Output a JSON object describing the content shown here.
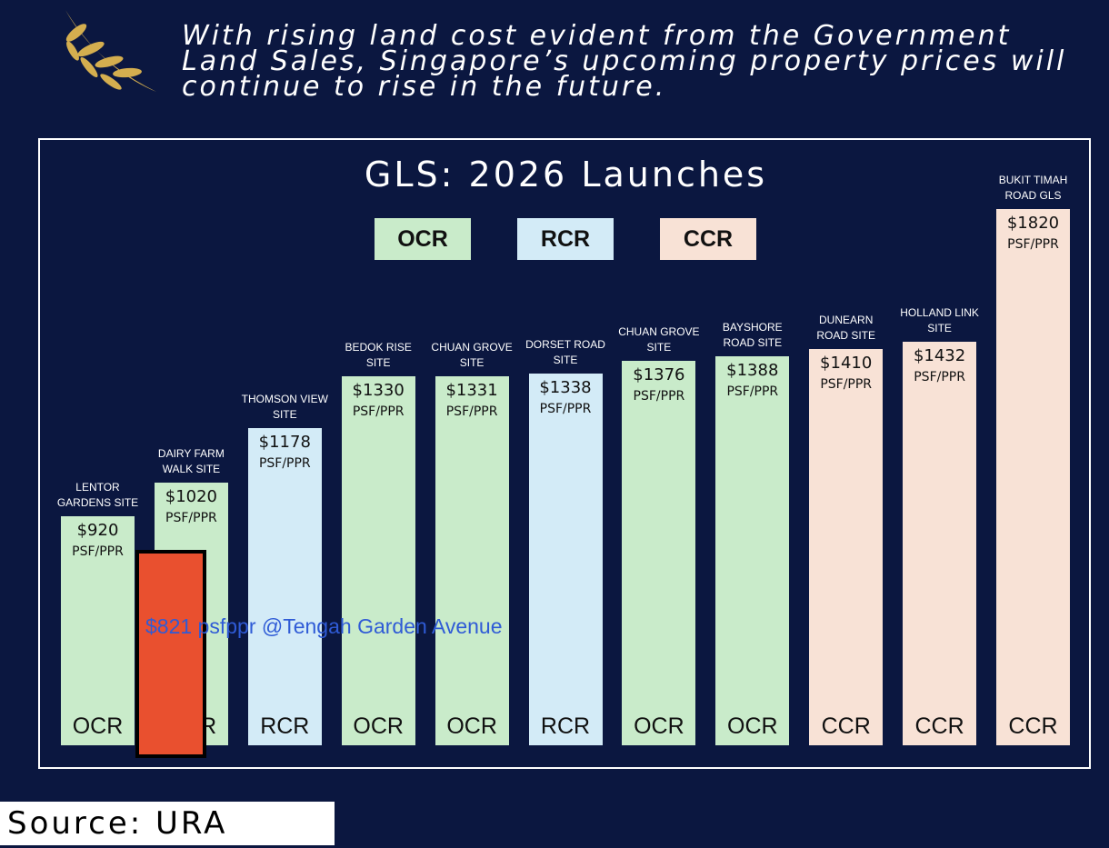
{
  "header": "With rising land cost evident from the Government Land Sales, Singapore’s upcoming property prices will continue to rise in the future.",
  "chart_data": {
    "type": "bar",
    "title": "GLS: 2026 Launches",
    "legend": [
      {
        "name": "OCR",
        "color": "#c9ebca"
      },
      {
        "name": "RCR",
        "color": "#d3ebf7"
      },
      {
        "name": "CCR",
        "color": "#f8e2d6"
      }
    ],
    "categories": [
      "LENTOR GARDENS SITE",
      "DAIRY FARM WALK SITE",
      "THOMSON VIEW SITE",
      "BEDOK RISE SITE",
      "CHUAN GROVE SITE",
      "DORSET ROAD SITE",
      "CHUAN GROVE SITE",
      "BAYSHORE ROAD SITE",
      "DUNEARN ROAD SITE",
      "HOLLAND LINK SITE",
      "BUKIT TIMAH ROAD GLS"
    ],
    "values": [
      920,
      1020,
      1178,
      1330,
      1331,
      1338,
      1376,
      1388,
      1410,
      1432,
      1820
    ],
    "value_labels": [
      "$920",
      "$1020",
      "$1178",
      "$1330",
      "$1331",
      "$1338",
      "$1376",
      "$1388",
      "$1410",
      "$1432",
      "$1820"
    ],
    "unit": "PSF/PPR",
    "regions": [
      "OCR",
      "OCR",
      "RCR",
      "OCR",
      "OCR",
      "RCR",
      "OCR",
      "OCR",
      "CCR",
      "CCR",
      "CCR"
    ],
    "ylim": [
      250,
      1820
    ],
    "annotation": {
      "text": "$821 psfppr @Tengah Garden Avenue",
      "value": 821,
      "color": "#e9502f"
    }
  },
  "source": "Source: URA"
}
